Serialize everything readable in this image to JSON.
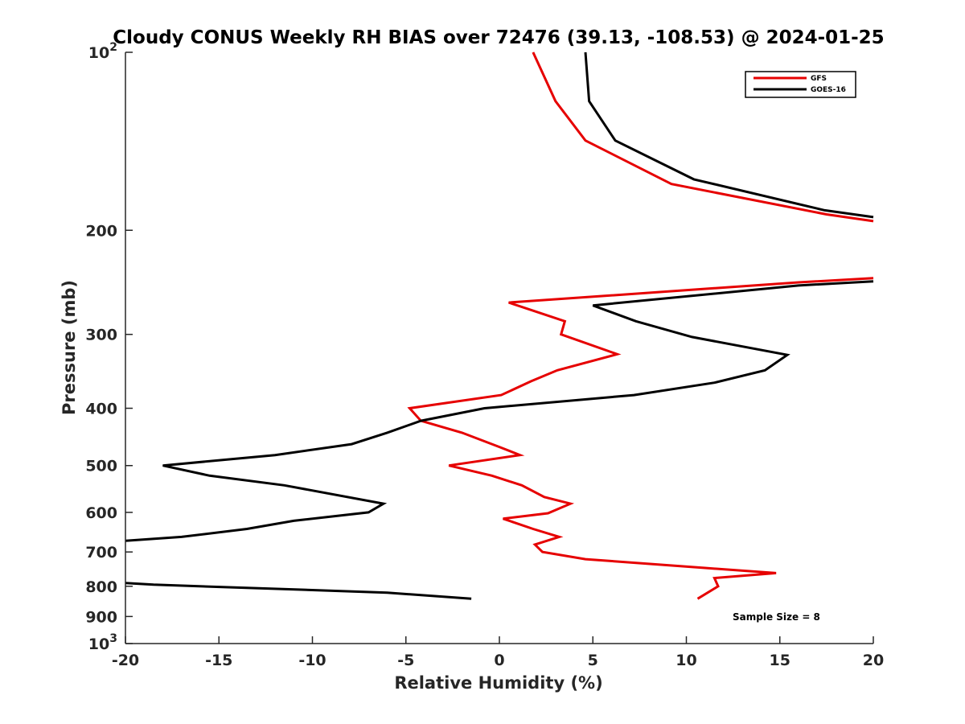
{
  "chart_data": {
    "type": "line",
    "title": "Cloudy CONUS Weekly RH BIAS over 72476 (39.13, -108.53) @ 2024-01-25",
    "xlabel": "Relative Humidity (%)",
    "ylabel": "Pressure (mb)",
    "xlim": [
      -20,
      20
    ],
    "ylim": [
      100,
      1000
    ],
    "y_scale": "log",
    "y_direction": "reversed",
    "x_ticks": [
      "-20",
      "-15",
      "-10",
      "-5",
      "0",
      "5",
      "10",
      "15",
      "20"
    ],
    "x_tick_values": [
      -20,
      -15,
      -10,
      -5,
      0,
      5,
      10,
      15,
      20
    ],
    "y_ticks": [
      {
        "value": 100,
        "base": "10",
        "exp": "2"
      },
      {
        "value": 200,
        "label": "200"
      },
      {
        "value": 300,
        "label": "300"
      },
      {
        "value": 400,
        "label": "400"
      },
      {
        "value": 500,
        "label": "500"
      },
      {
        "value": 600,
        "label": "600"
      },
      {
        "value": 700,
        "label": "700"
      },
      {
        "value": 800,
        "label": "800"
      },
      {
        "value": 900,
        "label": "900"
      },
      {
        "value": 1000,
        "base": "10",
        "exp": "3"
      }
    ],
    "grid": false,
    "legend_position": "top-right",
    "annotation": "Sample Size = 8",
    "series": [
      {
        "name": "GFS",
        "color": "#e60000",
        "segments": [
          [
            [
              1.8,
              100
            ],
            [
              3.0,
              121
            ],
            [
              4.6,
              141
            ],
            [
              9.2,
              167
            ],
            [
              17.5,
              188
            ],
            [
              20,
              193
            ]
          ],
          [
            [
              20,
              241
            ],
            [
              16,
              245
            ],
            [
              0.5,
              265
            ],
            [
              3.5,
              285
            ],
            [
              3.3,
              300
            ],
            [
              6.3,
              324
            ],
            [
              3.1,
              345
            ],
            [
              1.7,
              360
            ],
            [
              0.1,
              380
            ],
            [
              -4.8,
              400
            ],
            [
              -4.2,
              420
            ],
            [
              -2,
              440
            ],
            [
              0,
              465
            ],
            [
              1.1,
              480
            ],
            [
              -2.7,
              500
            ],
            [
              -0.4,
              520
            ],
            [
              1.2,
              540
            ],
            [
              2.4,
              565
            ],
            [
              3.8,
              580
            ],
            [
              2.6,
              602
            ],
            [
              0.2,
              615
            ],
            [
              1.8,
              640
            ],
            [
              3.2,
              660
            ],
            [
              1.9,
              680
            ],
            [
              2.3,
              700
            ],
            [
              4.6,
              720
            ],
            [
              11,
              745
            ],
            [
              14.8,
              760
            ],
            [
              11.5,
              775
            ],
            [
              11.7,
              800
            ],
            [
              10.6,
              840
            ]
          ]
        ]
      },
      {
        "name": "GOES-16",
        "color": "#000000",
        "segments": [
          [
            [
              4.6,
              100
            ],
            [
              4.8,
              121
            ],
            [
              6.2,
              141
            ],
            [
              10.4,
              164
            ],
            [
              17.4,
              185
            ],
            [
              20,
              190
            ]
          ],
          [
            [
              20,
              244
            ],
            [
              16,
              248
            ],
            [
              5,
              268
            ],
            [
              7.3,
              285
            ],
            [
              10.3,
              303
            ],
            [
              15.4,
              325
            ],
            [
              14.2,
              345
            ],
            [
              11.5,
              362
            ],
            [
              7.2,
              380
            ],
            [
              -0.8,
              400
            ],
            [
              -4.2,
              420
            ],
            [
              -6,
              440
            ],
            [
              -7.9,
              460
            ],
            [
              -12,
              480
            ],
            [
              -18,
              500
            ],
            [
              -15.5,
              520
            ],
            [
              -11.5,
              540
            ],
            [
              -6.2,
              580
            ],
            [
              -7,
              600
            ],
            [
              -11,
              620
            ],
            [
              -13.5,
              640
            ],
            [
              -17,
              660
            ],
            [
              -20,
              670
            ]
          ],
          [
            [
              -20,
              790
            ],
            [
              -18.5,
              795
            ],
            [
              -6,
              820
            ],
            [
              -1.5,
              840
            ]
          ]
        ]
      }
    ]
  }
}
